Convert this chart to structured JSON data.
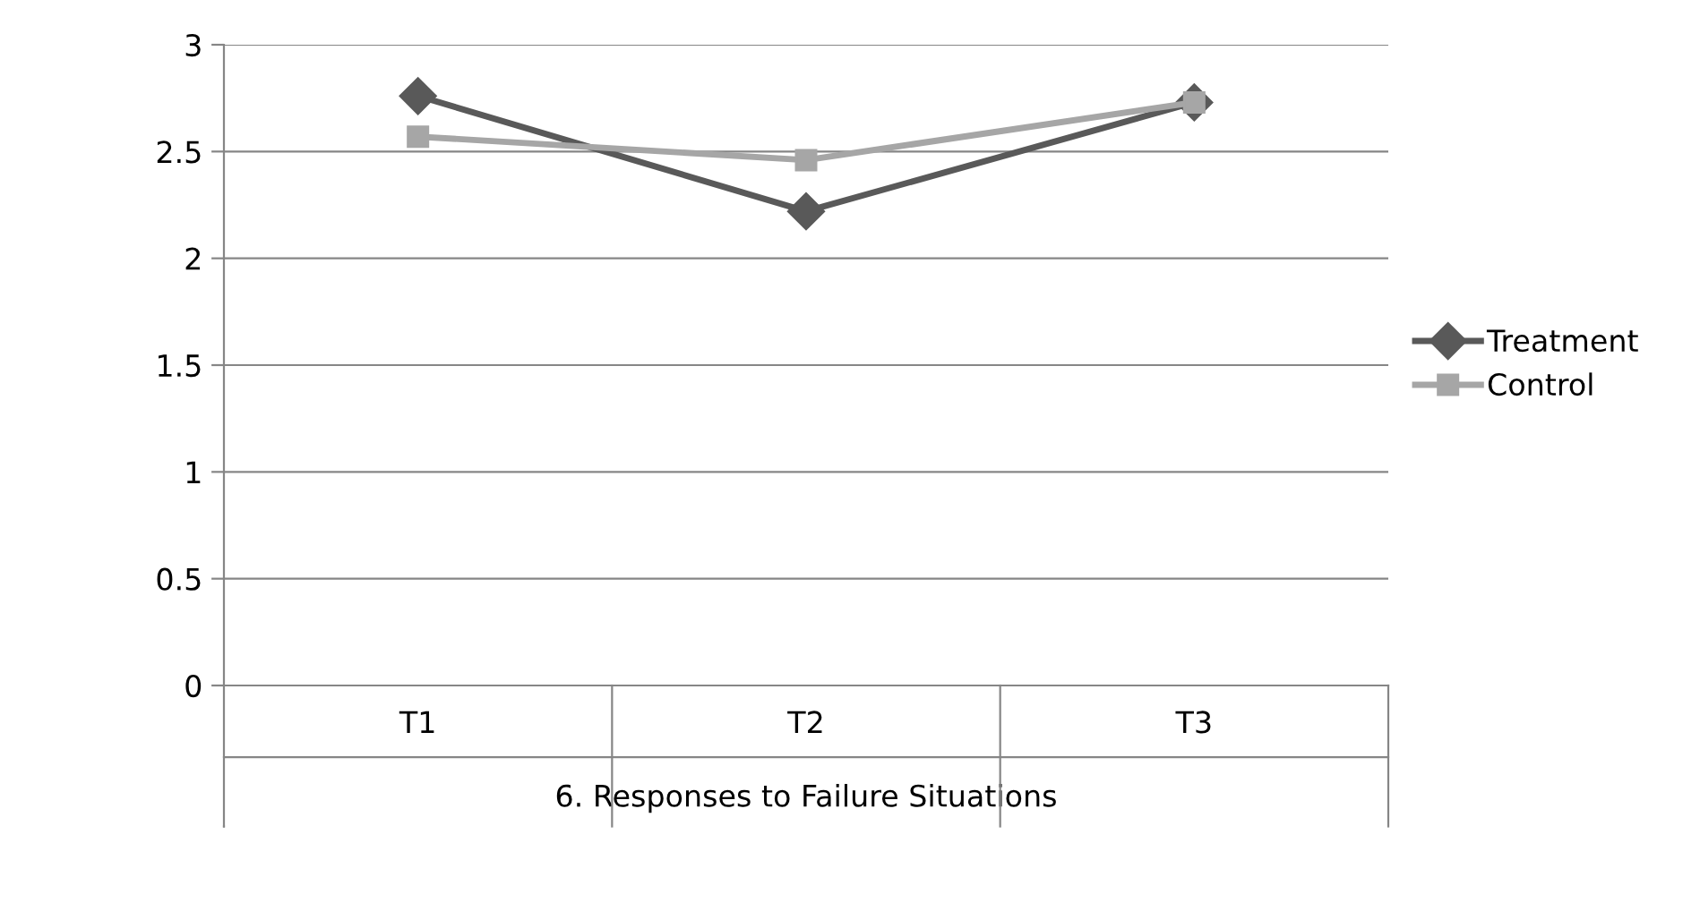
{
  "chart_data": {
    "type": "line",
    "categories": [
      "T1",
      "T2",
      "T3"
    ],
    "xlabel": "6. Responses to Failure Situations",
    "series": [
      {
        "name": "Treatment",
        "color": "#595959",
        "marker": "diamond",
        "values": [
          2.76,
          2.22,
          2.73
        ]
      },
      {
        "name": "Control",
        "color": "#a6a6a6",
        "marker": "square",
        "values": [
          2.57,
          2.46,
          2.73
        ]
      }
    ],
    "ylim": [
      0,
      3
    ],
    "yticks": [
      0,
      0.5,
      1,
      1.5,
      2,
      2.5,
      3
    ],
    "grid": "y",
    "legend": "right",
    "line_style": "solid"
  }
}
